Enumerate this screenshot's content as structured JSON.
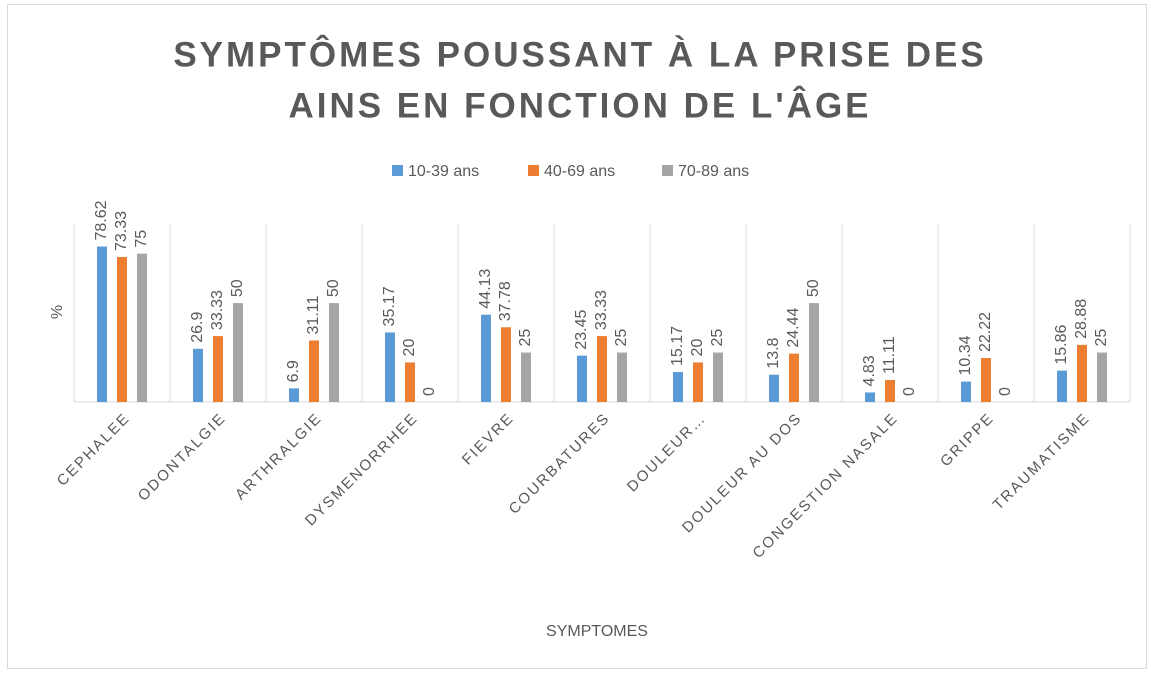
{
  "chart_data": {
    "type": "bar",
    "title": [
      "SYMPTÔMES POUSSANT À LA PRISE DES",
      "AINS EN FONCTION DE L'ÂGE"
    ],
    "y_label": "%",
    "x_label": "SYMPTOMES",
    "categories": [
      "CEPHALEE",
      "ODONTALGIE",
      "ARTHRALGIE",
      "DYSMENORRHEE",
      "FIEVRE",
      "COURBATURES",
      "DOULEUR…",
      "DOULEUR AU DOS",
      "CONGESTION NASALE",
      "GRIPPE",
      "TRAUMATISME"
    ],
    "series": [
      {
        "name": "10-39 ans",
        "color": "#5b9bd5",
        "values": [
          78.62,
          26.9,
          6.9,
          35.17,
          44.13,
          23.45,
          15.17,
          13.8,
          4.83,
          10.34,
          15.86
        ]
      },
      {
        "name": "40-69 ans",
        "color": "#ed7d31",
        "values": [
          73.33,
          33.33,
          31.11,
          20,
          37.78,
          33.33,
          20,
          24.44,
          11.11,
          22.22,
          28.88
        ]
      },
      {
        "name": "70-89 ans",
        "color": "#a5a5a5",
        "values": [
          75,
          50,
          50,
          0,
          25,
          25,
          25,
          50,
          0,
          0,
          25
        ]
      }
    ],
    "ylim": [
      0,
      90
    ],
    "legend": "top"
  }
}
